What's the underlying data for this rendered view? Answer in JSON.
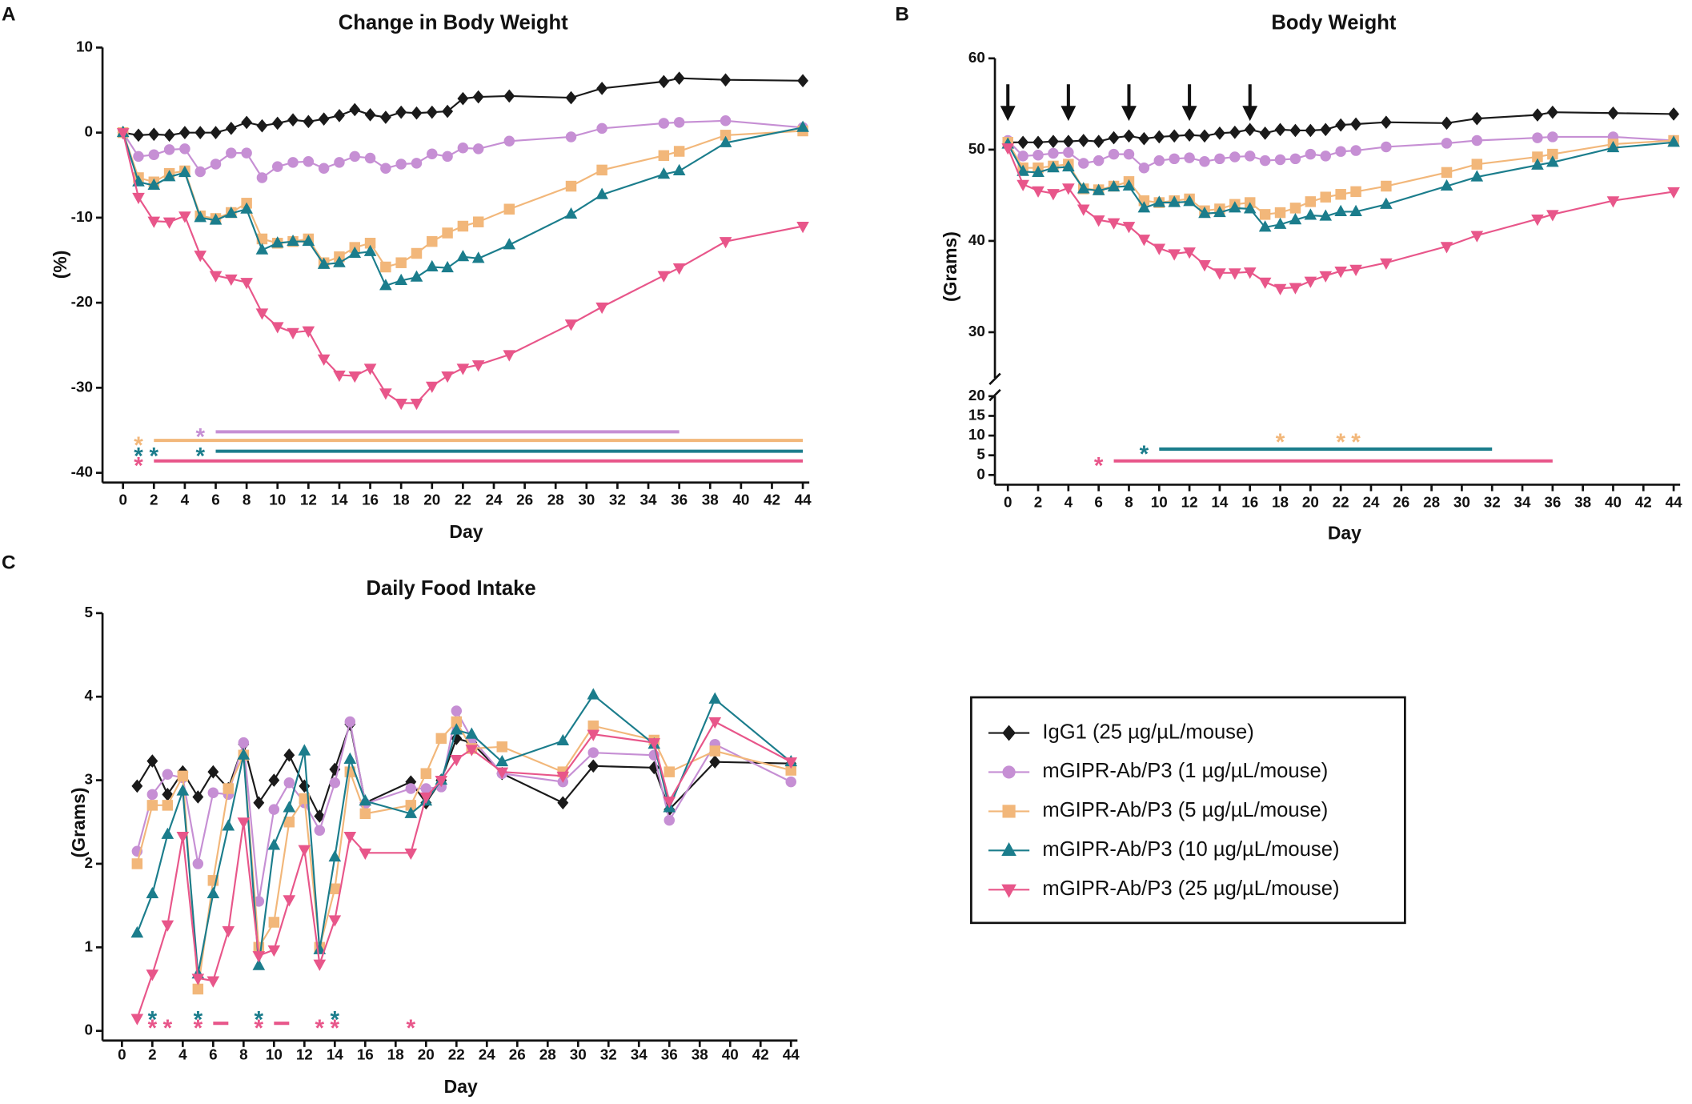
{
  "chart_data": [
    {
      "type": "line",
      "panel": "A",
      "title": "Change in Body Weight",
      "x_label": "Day",
      "y_label": "(%)",
      "xlim": [
        0,
        44
      ],
      "xticks": [
        0,
        2,
        4,
        6,
        8,
        10,
        12,
        14,
        16,
        18,
        20,
        22,
        24,
        26,
        28,
        30,
        32,
        34,
        36,
        38,
        40,
        42,
        44
      ],
      "ylim": [
        -40,
        10
      ],
      "yticks": [
        -40,
        -30,
        -20,
        -10,
        0,
        10
      ],
      "x": [
        0,
        1,
        2,
        3,
        4,
        5,
        6,
        7,
        8,
        9,
        10,
        11,
        12,
        13,
        14,
        15,
        16,
        17,
        18,
        19,
        20,
        21,
        22,
        23,
        25,
        29,
        31,
        35,
        36,
        39,
        44
      ],
      "series": [
        {
          "color": "#1a1a1a",
          "marker": "diamond",
          "values": [
            0,
            -0.3,
            -0.2,
            -0.3,
            0,
            0,
            0,
            0.5,
            1.2,
            0.8,
            1.1,
            1.5,
            1.3,
            1.6,
            2.0,
            2.7,
            2.1,
            1.8,
            2.4,
            2.3,
            2.4,
            2.5,
            4.0,
            4.2,
            4.3,
            4.1,
            5.2,
            6.0,
            6.4,
            6.2,
            6.1
          ]
        },
        {
          "color": "#c68fd4",
          "marker": "circle",
          "values": [
            0,
            -2.8,
            -2.6,
            -2.0,
            -1.9,
            -4.6,
            -3.7,
            -2.4,
            -2.4,
            -5.3,
            -4.0,
            -3.5,
            -3.4,
            -4.2,
            -3.5,
            -2.8,
            -3.0,
            -4.2,
            -3.7,
            -3.6,
            -2.5,
            -2.8,
            -1.8,
            -1.9,
            -1.0,
            -0.5,
            0.5,
            1.1,
            1.2,
            1.4,
            0.6
          ]
        },
        {
          "color": "#f2b77a",
          "marker": "square",
          "values": [
            0,
            -5.3,
            -5.8,
            -4.8,
            -4.5,
            -9.8,
            -10.1,
            -9.4,
            -8.3,
            -12.5,
            -13.0,
            -12.8,
            -12.5,
            -15.3,
            -14.6,
            -13.5,
            -13.0,
            -15.8,
            -15.3,
            -14.2,
            -12.8,
            -11.8,
            -11.0,
            -10.5,
            -9.0,
            -6.3,
            -4.4,
            -2.7,
            -2.2,
            -0.3,
            0.2
          ]
        },
        {
          "color": "#1b7d8c",
          "marker": "triangle-up",
          "values": [
            0,
            -5.8,
            -6.2,
            -5.2,
            -4.7,
            -10.0,
            -10.3,
            -9.5,
            -9.0,
            -13.8,
            -13.0,
            -12.8,
            -12.8,
            -15.5,
            -15.3,
            -14.2,
            -14.0,
            -18.0,
            -17.4,
            -17.0,
            -15.8,
            -15.9,
            -14.6,
            -14.8,
            -13.2,
            -9.6,
            -7.3,
            -4.9,
            -4.5,
            -1.2,
            0.6
          ]
        },
        {
          "color": "#e8568a",
          "marker": "triangle-down",
          "values": [
            0,
            -7.6,
            -10.4,
            -10.5,
            -9.8,
            -14.4,
            -16.8,
            -17.2,
            -17.6,
            -21.2,
            -22.8,
            -23.5,
            -23.3,
            -26.6,
            -28.5,
            -28.6,
            -27.7,
            -30.6,
            -31.8,
            -31.8,
            -29.8,
            -28.6,
            -27.7,
            -27.3,
            -26.1,
            -22.5,
            -20.5,
            -16.8,
            -15.9,
            -12.8,
            -11.0
          ]
        }
      ],
      "significance": [
        {
          "label": "*",
          "color": "#c68fd4",
          "stars": [
            5
          ],
          "spans": [
            [
              6,
              36
            ]
          ]
        },
        {
          "label": "*",
          "color": "#f2b77a",
          "stars": [
            1
          ],
          "spans": [
            [
              2,
              44
            ]
          ]
        },
        {
          "label": "*",
          "color": "#1b7d8c",
          "stars": [
            1,
            2,
            5
          ],
          "spans": [
            [
              6,
              44
            ]
          ]
        },
        {
          "label": "*",
          "color": "#e8568a",
          "stars": [
            1
          ],
          "spans": [
            [
              2,
              44
            ]
          ]
        }
      ]
    },
    {
      "type": "line",
      "panel": "B",
      "title": "Body Weight",
      "x_label": "Day",
      "y_label": "(Grams)",
      "xlim": [
        0,
        44
      ],
      "xticks": [
        0,
        2,
        4,
        6,
        8,
        10,
        12,
        14,
        16,
        18,
        20,
        22,
        24,
        26,
        28,
        30,
        32,
        34,
        36,
        38,
        40,
        42,
        44
      ],
      "ylim": [
        0,
        60
      ],
      "ybreak": [
        20,
        25
      ],
      "yticks": [
        0,
        5,
        10,
        15,
        20,
        30,
        40,
        50,
        60
      ],
      "dose_days": [
        0,
        4,
        8,
        12,
        16
      ],
      "x": [
        0,
        1,
        2,
        3,
        4,
        5,
        6,
        7,
        8,
        9,
        10,
        11,
        12,
        13,
        14,
        15,
        16,
        17,
        18,
        19,
        20,
        21,
        22,
        23,
        25,
        29,
        31,
        35,
        36,
        40,
        44
      ],
      "series": [
        {
          "color": "#1a1a1a",
          "marker": "diamond",
          "values": [
            50.8,
            50.8,
            50.8,
            50.9,
            50.9,
            51.0,
            50.9,
            51.3,
            51.5,
            51.2,
            51.4,
            51.5,
            51.6,
            51.5,
            51.8,
            51.9,
            52.2,
            51.8,
            52.2,
            52.1,
            52.1,
            52.2,
            52.7,
            52.8,
            53.0,
            52.9,
            53.4,
            53.8,
            54.1,
            54.0,
            53.9
          ]
        },
        {
          "color": "#c68fd4",
          "marker": "circle",
          "values": [
            51.0,
            49.3,
            49.4,
            49.6,
            49.7,
            48.5,
            48.8,
            49.5,
            49.5,
            48.0,
            48.8,
            49.0,
            49.1,
            48.7,
            49.0,
            49.2,
            49.3,
            48.8,
            48.9,
            49.0,
            49.5,
            49.3,
            49.8,
            49.9,
            50.3,
            50.7,
            51.0,
            51.3,
            51.4,
            51.4,
            51.0
          ]
        },
        {
          "color": "#f2b77a",
          "marker": "square",
          "values": [
            50.8,
            48.0,
            48.0,
            48.2,
            48.4,
            45.7,
            45.6,
            46.0,
            46.5,
            44.4,
            44.2,
            44.4,
            44.6,
            43.3,
            43.5,
            44.0,
            44.2,
            42.9,
            43.1,
            43.6,
            44.3,
            44.8,
            45.1,
            45.4,
            46.0,
            47.5,
            48.4,
            49.2,
            49.5,
            50.6,
            51.0
          ]
        },
        {
          "color": "#1b7d8c",
          "marker": "triangle-up",
          "values": [
            50.6,
            47.6,
            47.5,
            48.0,
            48.1,
            45.7,
            45.5,
            45.9,
            46.0,
            43.6,
            44.2,
            44.2,
            44.3,
            43.0,
            43.1,
            43.6,
            43.5,
            41.5,
            41.8,
            42.3,
            42.8,
            42.7,
            43.2,
            43.2,
            44.0,
            46.0,
            47.0,
            48.3,
            48.6,
            50.2,
            50.8
          ]
        },
        {
          "color": "#e8568a",
          "marker": "triangle-down",
          "values": [
            50.2,
            46.2,
            45.5,
            45.2,
            45.8,
            43.5,
            42.3,
            42.0,
            41.6,
            40.2,
            39.2,
            38.6,
            38.8,
            37.4,
            36.5,
            36.5,
            36.6,
            35.5,
            34.8,
            34.9,
            35.6,
            36.2,
            36.7,
            36.9,
            37.6,
            39.4,
            40.6,
            42.4,
            42.9,
            44.4,
            45.4
          ]
        }
      ],
      "significance": [
        {
          "label": "*",
          "color": "#f2b77a",
          "stars": [
            18,
            22,
            23
          ],
          "spans": []
        },
        {
          "label": "*",
          "color": "#1b7d8c",
          "stars": [
            9
          ],
          "spans": [
            [
              10,
              32
            ]
          ]
        },
        {
          "label": "*",
          "color": "#e8568a",
          "stars": [
            6
          ],
          "spans": [
            [
              7,
              36
            ]
          ]
        }
      ]
    },
    {
      "type": "line",
      "panel": "C",
      "title": "Daily Food Intake",
      "x_label": "Day",
      "y_label": "(Grams)",
      "xlim": [
        0,
        44
      ],
      "xticks": [
        0,
        2,
        4,
        6,
        8,
        10,
        12,
        14,
        16,
        18,
        20,
        22,
        24,
        26,
        28,
        30,
        32,
        34,
        36,
        38,
        40,
        42,
        44
      ],
      "ylim": [
        0,
        5
      ],
      "yticks": [
        0,
        1,
        2,
        3,
        4,
        5
      ],
      "x": [
        1,
        2,
        3,
        4,
        5,
        6,
        7,
        8,
        9,
        10,
        11,
        12,
        13,
        14,
        15,
        16,
        19,
        20,
        21,
        22,
        23,
        25,
        29,
        31,
        35,
        36,
        39,
        44
      ],
      "series": [
        {
          "name": "IgG1 (25 µg/µL/mouse)",
          "color": "#1a1a1a",
          "marker": "diamond",
          "values": [
            2.93,
            3.23,
            2.83,
            3.1,
            2.8,
            3.1,
            2.9,
            3.43,
            2.73,
            3.0,
            3.3,
            2.93,
            2.57,
            3.13,
            3.67,
            2.73,
            2.98,
            2.73,
            3.0,
            3.5,
            3.45,
            3.08,
            2.73,
            3.17,
            3.15,
            2.65,
            3.22,
            3.2
          ]
        },
        {
          "name": "mGIPR-Ab/P3 (1 µg/µL/mouse)",
          "color": "#c68fd4",
          "marker": "circle",
          "values": [
            2.15,
            2.83,
            3.07,
            3.03,
            2.0,
            2.85,
            2.83,
            3.45,
            1.55,
            2.65,
            2.97,
            2.73,
            2.4,
            2.97,
            3.7,
            2.72,
            2.9,
            2.9,
            2.92,
            3.83,
            3.5,
            3.08,
            2.98,
            3.33,
            3.3,
            2.52,
            3.43,
            2.98
          ]
        },
        {
          "name": "mGIPR-Ab/P3 (5 µg/µL/mouse)",
          "color": "#f2b77a",
          "marker": "square",
          "values": [
            2.0,
            2.7,
            2.7,
            3.05,
            0.5,
            1.8,
            2.9,
            3.3,
            1.0,
            1.3,
            2.5,
            2.78,
            1.0,
            1.7,
            3.1,
            2.6,
            2.7,
            3.08,
            3.5,
            3.7,
            3.38,
            3.4,
            3.1,
            3.65,
            3.48,
            3.1,
            3.35,
            3.12
          ]
        },
        {
          "name": "mGIPR-Ab/P3 (10 µg/µL/mouse)",
          "color": "#1b7d8c",
          "marker": "triangle-up",
          "values": [
            1.17,
            1.64,
            2.35,
            2.87,
            0.68,
            1.64,
            2.45,
            3.3,
            0.78,
            2.22,
            2.67,
            3.35,
            0.97,
            2.08,
            3.25,
            2.75,
            2.6,
            2.75,
            3.0,
            3.6,
            3.55,
            3.22,
            3.47,
            4.02,
            3.43,
            2.67,
            3.97,
            3.22
          ]
        },
        {
          "name": "mGIPR-Ab/P3 (25 µg/µL/mouse)",
          "color": "#e8568a",
          "marker": "triangle-down",
          "values": [
            0.15,
            0.68,
            1.27,
            2.33,
            0.63,
            0.6,
            1.2,
            2.5,
            0.9,
            0.97,
            1.57,
            2.17,
            0.8,
            1.33,
            2.33,
            2.13,
            2.13,
            2.8,
            3.0,
            3.25,
            3.37,
            3.1,
            3.05,
            3.55,
            3.45,
            2.75,
            3.7,
            3.22
          ]
        }
      ],
      "significance": [
        {
          "label": "*",
          "color": "#1b7d8c",
          "stars": [
            2,
            5,
            9,
            14
          ],
          "spans": []
        },
        {
          "label": "*",
          "color": "#e8568a",
          "stars": [
            2,
            3,
            5,
            9,
            13,
            14,
            19
          ],
          "spans": [
            [
              6,
              7
            ],
            [
              10,
              11
            ]
          ]
        }
      ]
    }
  ]
}
